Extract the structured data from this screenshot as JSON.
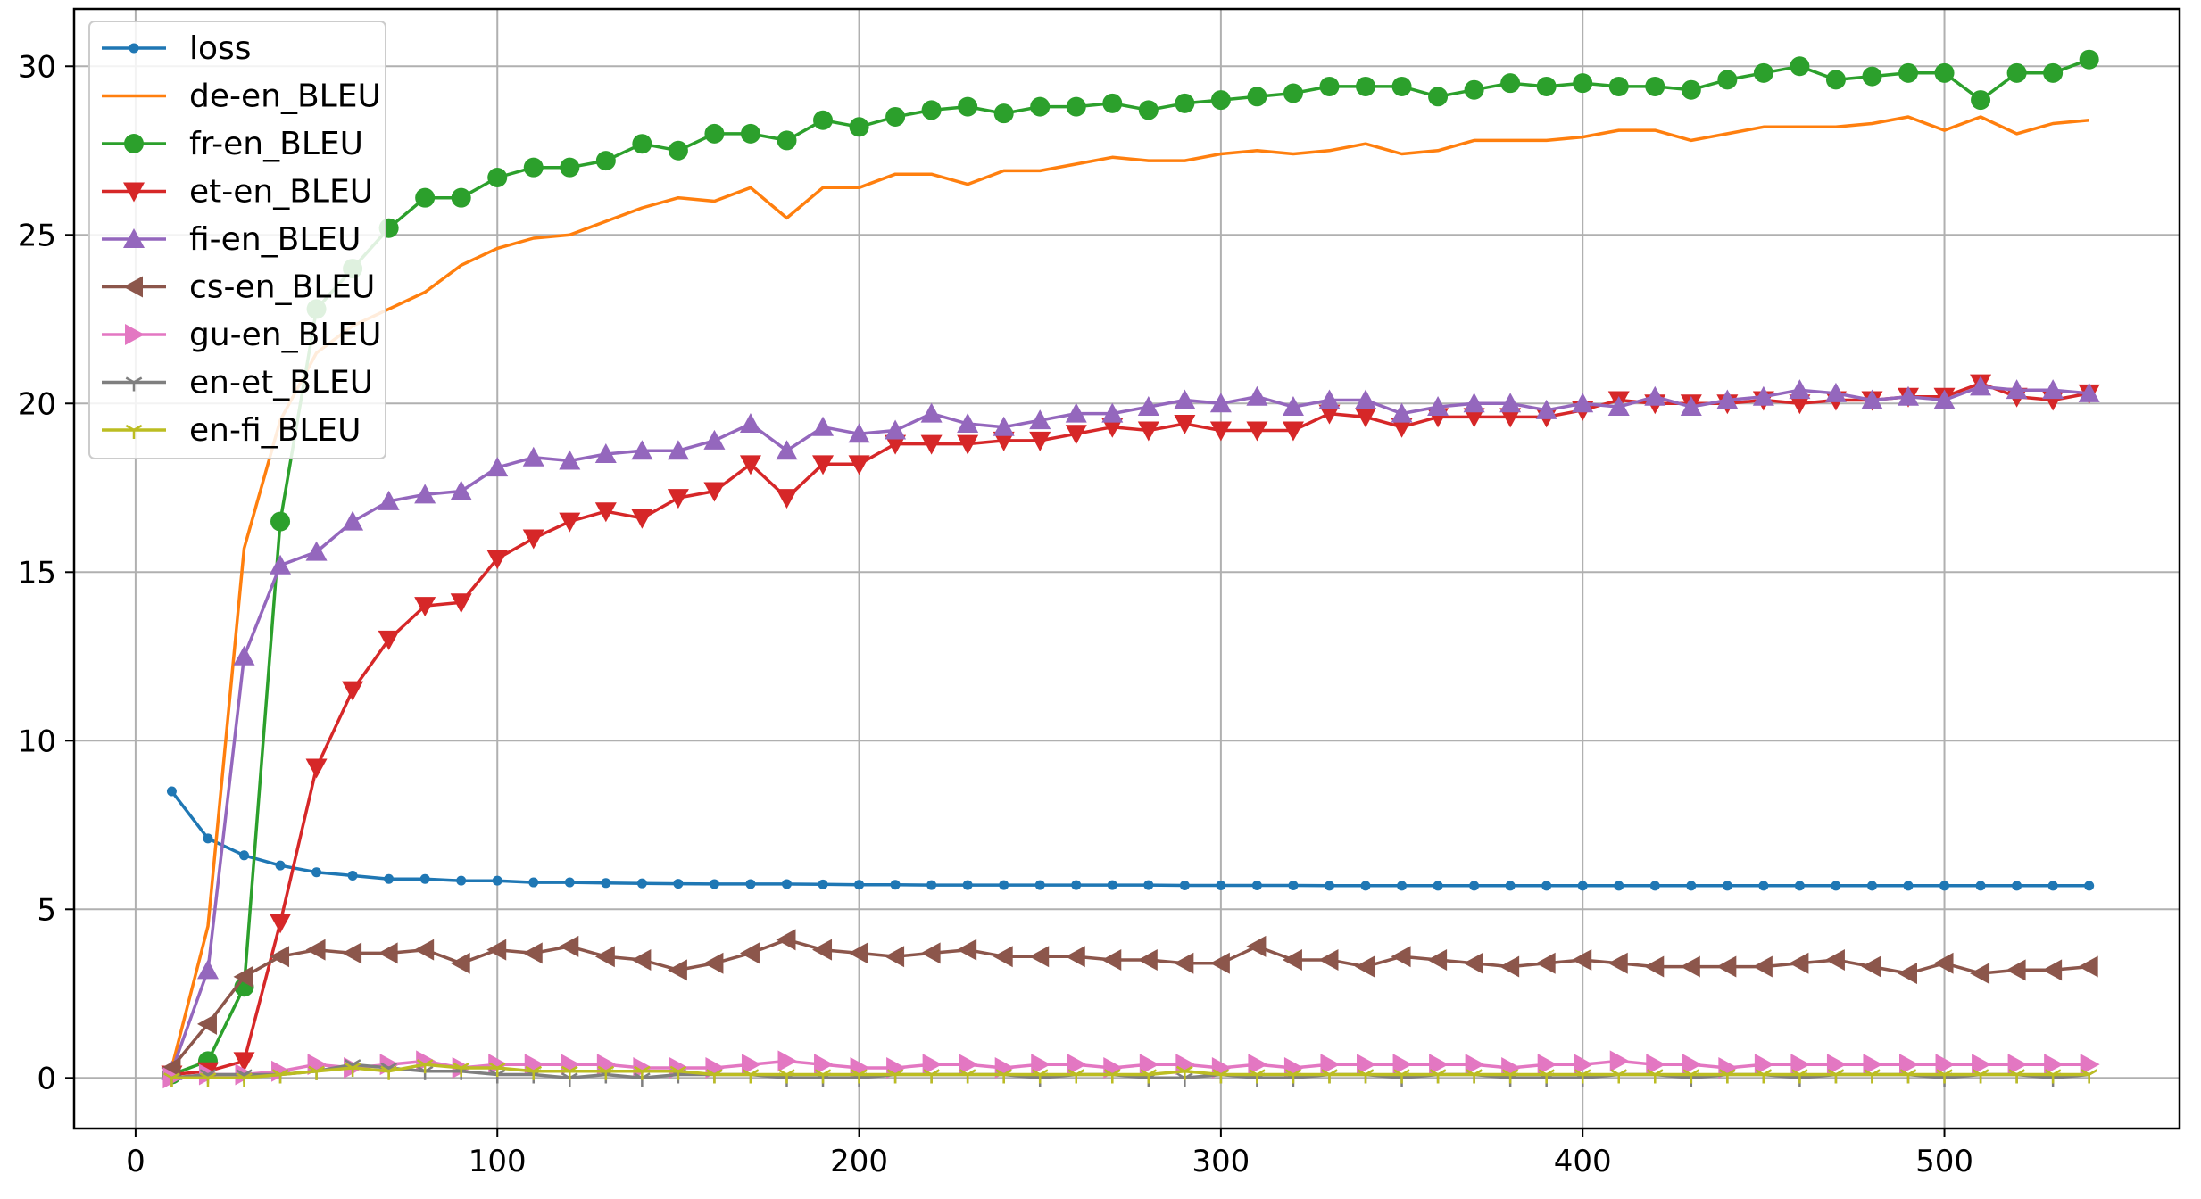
{
  "chart_data": {
    "type": "line",
    "title": "",
    "xlabel": "",
    "ylabel": "",
    "xlim": [
      -17,
      565
    ],
    "ylim": [
      -1.5,
      31.7
    ],
    "xticks": [
      0,
      100,
      200,
      300,
      400,
      500
    ],
    "yticks": [
      0,
      5,
      10,
      15,
      20,
      25,
      30
    ],
    "grid": true,
    "legend_position": "top-left",
    "x": [
      10,
      20,
      30,
      40,
      50,
      60,
      70,
      80,
      90,
      100,
      110,
      120,
      130,
      140,
      150,
      160,
      170,
      180,
      190,
      200,
      210,
      220,
      230,
      240,
      250,
      260,
      270,
      280,
      290,
      300,
      310,
      320,
      330,
      340,
      350,
      360,
      370,
      380,
      390,
      400,
      410,
      420,
      430,
      440,
      450,
      460,
      470,
      480,
      490,
      500,
      510,
      520,
      530,
      540
    ],
    "series": [
      {
        "name": "loss",
        "color": "#1f77b4",
        "marker": "point",
        "values": [
          8.5,
          7.1,
          6.6,
          6.3,
          6.1,
          6.0,
          5.9,
          5.9,
          5.85,
          5.85,
          5.8,
          5.8,
          5.78,
          5.77,
          5.76,
          5.75,
          5.75,
          5.75,
          5.74,
          5.73,
          5.73,
          5.72,
          5.72,
          5.72,
          5.72,
          5.72,
          5.72,
          5.72,
          5.71,
          5.71,
          5.71,
          5.71,
          5.7,
          5.7,
          5.7,
          5.7,
          5.7,
          5.7,
          5.7,
          5.7,
          5.7,
          5.7,
          5.7,
          5.7,
          5.7,
          5.7,
          5.7,
          5.7,
          5.7,
          5.7,
          5.7,
          5.7,
          5.7,
          5.7
        ]
      },
      {
        "name": "de-en_BLEU",
        "color": "#ff7f0e",
        "marker": "none",
        "values": [
          0.3,
          4.5,
          15.7,
          19.5,
          21.5,
          22.3,
          22.8,
          23.3,
          24.1,
          24.6,
          24.9,
          25.0,
          25.4,
          25.8,
          26.1,
          26.0,
          26.4,
          25.5,
          26.4,
          26.4,
          26.8,
          26.8,
          26.5,
          26.9,
          26.9,
          27.1,
          27.3,
          27.2,
          27.2,
          27.4,
          27.5,
          27.4,
          27.5,
          27.7,
          27.4,
          27.5,
          27.8,
          27.8,
          27.8,
          27.9,
          28.1,
          28.1,
          27.8,
          28.0,
          28.2,
          28.2,
          28.2,
          28.3,
          28.5,
          28.1,
          28.5,
          28.0,
          28.3,
          28.4
        ]
      },
      {
        "name": "fr-en_BLEU",
        "color": "#2ca02c",
        "marker": "circle",
        "values": [
          0.1,
          0.5,
          2.7,
          16.5,
          22.8,
          24.0,
          25.2,
          26.1,
          26.1,
          26.7,
          27.0,
          27.0,
          27.2,
          27.7,
          27.5,
          28.0,
          28.0,
          27.8,
          28.4,
          28.2,
          28.5,
          28.7,
          28.8,
          28.6,
          28.8,
          28.8,
          28.9,
          28.7,
          28.9,
          29.0,
          29.1,
          29.2,
          29.4,
          29.4,
          29.4,
          29.1,
          29.3,
          29.5,
          29.4,
          29.5,
          29.4,
          29.4,
          29.3,
          29.6,
          29.8,
          30.0,
          29.6,
          29.7,
          29.8,
          29.8,
          29.0,
          29.8,
          29.8,
          30.2
        ]
      },
      {
        "name": "et-en_BLEU",
        "color": "#d62728",
        "marker": "triangle-down",
        "values": [
          0.1,
          0.2,
          0.5,
          4.6,
          9.2,
          11.5,
          13.0,
          14.0,
          14.1,
          15.4,
          16.0,
          16.5,
          16.8,
          16.6,
          17.2,
          17.4,
          18.2,
          17.2,
          18.2,
          18.2,
          18.8,
          18.8,
          18.8,
          18.9,
          18.9,
          19.1,
          19.3,
          19.2,
          19.4,
          19.2,
          19.2,
          19.2,
          19.7,
          19.6,
          19.3,
          19.6,
          19.6,
          19.6,
          19.6,
          19.8,
          20.1,
          20.0,
          20.0,
          20.0,
          20.1,
          20.0,
          20.1,
          20.1,
          20.2,
          20.2,
          20.6,
          20.2,
          20.1,
          20.3
        ]
      },
      {
        "name": "fi-en_BLEU",
        "color": "#9467bd",
        "marker": "triangle-up",
        "values": [
          0.2,
          3.2,
          12.5,
          15.2,
          15.6,
          16.5,
          17.1,
          17.3,
          17.4,
          18.1,
          18.4,
          18.3,
          18.5,
          18.6,
          18.6,
          18.9,
          19.4,
          18.6,
          19.3,
          19.1,
          19.2,
          19.7,
          19.4,
          19.3,
          19.5,
          19.7,
          19.7,
          19.9,
          20.1,
          20.0,
          20.2,
          19.9,
          20.1,
          20.1,
          19.7,
          19.9,
          20.0,
          20.0,
          19.8,
          20.0,
          19.9,
          20.2,
          19.9,
          20.1,
          20.2,
          20.4,
          20.3,
          20.1,
          20.2,
          20.1,
          20.5,
          20.4,
          20.4,
          20.3
        ]
      },
      {
        "name": "cs-en_BLEU",
        "color": "#8c564b",
        "marker": "triangle-left",
        "values": [
          0.3,
          1.6,
          3.0,
          3.6,
          3.8,
          3.7,
          3.7,
          3.8,
          3.4,
          3.8,
          3.7,
          3.9,
          3.6,
          3.5,
          3.2,
          3.4,
          3.7,
          4.1,
          3.8,
          3.7,
          3.6,
          3.7,
          3.8,
          3.6,
          3.6,
          3.6,
          3.5,
          3.5,
          3.4,
          3.4,
          3.9,
          3.5,
          3.5,
          3.3,
          3.6,
          3.5,
          3.4,
          3.3,
          3.4,
          3.5,
          3.4,
          3.3,
          3.3,
          3.3,
          3.3,
          3.4,
          3.5,
          3.3,
          3.1,
          3.4,
          3.1,
          3.2,
          3.2,
          3.3
        ]
      },
      {
        "name": "gu-en_BLEU",
        "color": "#e377c2",
        "marker": "triangle-right",
        "values": [
          0.0,
          0.1,
          0.1,
          0.2,
          0.4,
          0.3,
          0.4,
          0.5,
          0.3,
          0.4,
          0.4,
          0.4,
          0.4,
          0.3,
          0.3,
          0.3,
          0.4,
          0.5,
          0.4,
          0.3,
          0.3,
          0.4,
          0.4,
          0.3,
          0.4,
          0.4,
          0.3,
          0.4,
          0.4,
          0.3,
          0.4,
          0.3,
          0.4,
          0.4,
          0.4,
          0.4,
          0.4,
          0.3,
          0.4,
          0.4,
          0.5,
          0.4,
          0.4,
          0.3,
          0.4,
          0.4,
          0.4,
          0.4,
          0.4,
          0.4,
          0.4,
          0.4,
          0.4,
          0.4
        ]
      },
      {
        "name": "en-et_BLEU",
        "color": "#7f7f7f",
        "marker": "tri",
        "values": [
          0.0,
          0.1,
          0.1,
          0.1,
          0.2,
          0.4,
          0.3,
          0.2,
          0.2,
          0.1,
          0.1,
          0.0,
          0.1,
          0.0,
          0.1,
          0.1,
          0.1,
          0.0,
          0.0,
          0.0,
          0.1,
          0.1,
          0.1,
          0.1,
          0.0,
          0.1,
          0.1,
          0.0,
          0.0,
          0.1,
          0.0,
          0.0,
          0.1,
          0.1,
          0.0,
          0.1,
          0.1,
          0.0,
          0.0,
          0.0,
          0.1,
          0.1,
          0.0,
          0.1,
          0.1,
          0.0,
          0.1,
          0.1,
          0.1,
          0.0,
          0.1,
          0.1,
          0.0,
          0.1
        ]
      },
      {
        "name": "en-fi_BLEU",
        "color": "#bcbd22",
        "marker": "tri",
        "values": [
          0.0,
          0.0,
          0.0,
          0.1,
          0.2,
          0.3,
          0.2,
          0.4,
          0.3,
          0.3,
          0.2,
          0.2,
          0.2,
          0.2,
          0.2,
          0.1,
          0.1,
          0.1,
          0.1,
          0.1,
          0.1,
          0.1,
          0.1,
          0.1,
          0.1,
          0.1,
          0.1,
          0.1,
          0.2,
          0.1,
          0.1,
          0.1,
          0.1,
          0.1,
          0.1,
          0.1,
          0.1,
          0.1,
          0.1,
          0.1,
          0.1,
          0.1,
          0.1,
          0.1,
          0.1,
          0.1,
          0.1,
          0.1,
          0.1,
          0.1,
          0.1,
          0.1,
          0.1,
          0.1
        ]
      }
    ]
  }
}
